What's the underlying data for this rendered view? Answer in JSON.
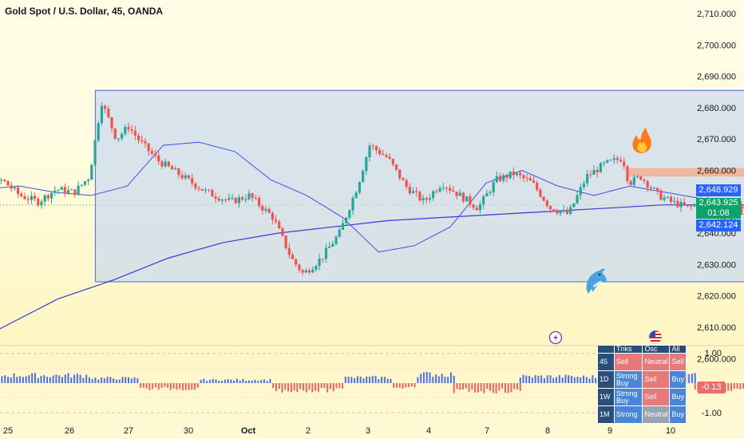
{
  "header": {
    "title": "Gold Spot / U.S. Dollar, 45, OANDA"
  },
  "price_tags": {
    "ma_value": "2,648.929",
    "last_price": "2,643.925",
    "countdown": "01:08",
    "low_value": "2,642.124",
    "osc_value": "-0.13"
  },
  "colors": {
    "up": "#26a69a",
    "down": "#ef5350",
    "ma_fast": "#3f51e0",
    "ma_slow": "#3a3ad6",
    "range_box": "#c9d8ef",
    "range_border": "#5c7fd6",
    "resistance": "#f2b08f",
    "arrow": "#e0245e",
    "osc_up": "#4a6fe0",
    "osc_down": "#e8655f",
    "tag_blue": "#2962ff",
    "tag_green": "#0aa36b"
  },
  "icons": {
    "dolphin": "dolphin-icon",
    "fire": "fire-icon",
    "lightning": "lightning-icon",
    "us_flag": "us-flag-icon"
  },
  "signal_table": {
    "headers": [
      "",
      "Tnks",
      "Osc",
      "All"
    ],
    "rows": [
      {
        "tf": "45",
        "cells": [
          {
            "text": "Sell",
            "kind": "sell"
          },
          {
            "text": "Neutral",
            "kind": "sell"
          },
          {
            "text": "Sell",
            "kind": "sell"
          }
        ]
      },
      {
        "tf": "1D",
        "cells": [
          {
            "text": "Strong Buy",
            "kind": "buy"
          },
          {
            "text": "Sell",
            "kind": "sell"
          },
          {
            "text": "Buy",
            "kind": "buy"
          }
        ]
      },
      {
        "tf": "1W",
        "cells": [
          {
            "text": "Strong Buy",
            "kind": "buy"
          },
          {
            "text": "Sell",
            "kind": "sell"
          },
          {
            "text": "Buy",
            "kind": "buy"
          }
        ]
      },
      {
        "tf": "1M",
        "cells": [
          {
            "text": "Strong",
            "kind": "buy"
          },
          {
            "text": "Neutral",
            "kind": "neutral"
          },
          {
            "text": "Buy",
            "kind": "buy"
          }
        ]
      }
    ]
  },
  "chart_data": {
    "type": "candlestick",
    "symbol": "Gold Spot / U.S. Dollar",
    "interval": "45",
    "source": "OANDA",
    "x_ticks": [
      "25",
      "26",
      "27",
      "30",
      "Oct",
      "2",
      "3",
      "4",
      "7",
      "8",
      "9",
      "10"
    ],
    "y_ticks": [
      "2,710.000",
      "2,700.000",
      "2,690.000",
      "2,680.000",
      "2,670.000",
      "2,660.000",
      "2,650.000",
      "2,640.000",
      "2,630.000",
      "2,620.000",
      "2,610.000",
      "2,600.000"
    ],
    "ylim": [
      2598,
      2714
    ],
    "price_path": [
      {
        "d": 24.0,
        "p": 2655
      },
      {
        "d": 24.3,
        "p": 2658
      },
      {
        "d": 24.6,
        "p": 2652
      },
      {
        "d": 24.9,
        "p": 2657
      },
      {
        "d": 25.2,
        "p": 2652
      },
      {
        "d": 25.5,
        "p": 2650
      },
      {
        "d": 25.8,
        "p": 2654
      },
      {
        "d": 26.1,
        "p": 2653
      },
      {
        "d": 26.35,
        "p": 2658
      },
      {
        "d": 26.55,
        "p": 2682
      },
      {
        "d": 26.8,
        "p": 2670
      },
      {
        "d": 27.0,
        "p": 2674
      },
      {
        "d": 27.2,
        "p": 2669
      },
      {
        "d": 27.5,
        "p": 2663
      },
      {
        "d": 27.9,
        "p": 2658
      },
      {
        "d": 28.3,
        "p": 2653
      },
      {
        "d": 28.7,
        "p": 2650
      },
      {
        "d": 29.0,
        "p": 2652
      },
      {
        "d": 29.4,
        "p": 2645
      },
      {
        "d": 29.7,
        "p": 2632
      },
      {
        "d": 29.9,
        "p": 2627
      },
      {
        "d": 30.2,
        "p": 2632
      },
      {
        "d": 30.5,
        "p": 2640
      },
      {
        "d": 30.8,
        "p": 2655
      },
      {
        "d": 31.0,
        "p": 2668
      },
      {
        "d": 31.3,
        "p": 2664
      },
      {
        "d": 31.6,
        "p": 2655
      },
      {
        "d": 31.9,
        "p": 2650
      },
      {
        "d": 32.2,
        "p": 2656
      },
      {
        "d": 32.5,
        "p": 2652
      },
      {
        "d": 32.8,
        "p": 2648
      },
      {
        "d": 33.1,
        "p": 2657
      },
      {
        "d": 33.4,
        "p": 2659
      },
      {
        "d": 33.7,
        "p": 2656
      },
      {
        "d": 34.0,
        "p": 2648
      },
      {
        "d": 34.3,
        "p": 2646
      },
      {
        "d": 34.6,
        "p": 2658
      },
      {
        "d": 34.9,
        "p": 2662
      },
      {
        "d": 35.2,
        "p": 2664
      },
      {
        "d": 35.3,
        "p": 2656
      },
      {
        "d": 35.5,
        "p": 2658
      },
      {
        "d": 35.8,
        "p": 2652
      },
      {
        "d": 36.0,
        "p": 2650
      },
      {
        "d": 36.3,
        "p": 2648
      },
      {
        "d": 36.6,
        "p": 2651
      },
      {
        "d": 36.9,
        "p": 2643
      },
      {
        "d": 37.1,
        "p": 2648
      },
      {
        "d": 37.3,
        "p": 2645
      },
      {
        "d": 37.5,
        "p": 2646
      },
      {
        "d": 37.7,
        "p": 2642
      }
    ],
    "moving_averages": [
      {
        "name": "fast",
        "values": [
          2651,
          2654,
          2655,
          2653,
          2652,
          2655,
          2668,
          2669,
          2666,
          2657,
          2652,
          2645,
          2634,
          2636,
          2642,
          2656,
          2660,
          2655,
          2652,
          2655,
          2653,
          2651,
          2648,
          2649
        ]
      },
      {
        "name": "slow",
        "values": [
          2601,
          2610,
          2619,
          2625,
          2632,
          2637,
          2640,
          2642,
          2644,
          2645,
          2646,
          2647,
          2648,
          2649,
          2649,
          2648.9
        ]
      }
    ],
    "annotations": {
      "range_box": {
        "from": 26.45,
        "to": 38.95,
        "top": 2685.5,
        "bottom": 2624.5
      },
      "resistance_zone": {
        "from": 35.3,
        "to": 38.95,
        "top": 2660,
        "bottom": 2658.8
      },
      "projection_arrow": [
        {
          "d": 37.85,
          "p": 2646.5
        },
        {
          "d": 38.4,
          "p": 2625
        },
        {
          "d": 39.2,
          "p": 2659.5
        },
        {
          "d": 39.75,
          "p": 2637
        }
      ]
    },
    "oscillator": {
      "ylim": [
        -1.0,
        1.0
      ],
      "y_ticks": [
        "1.00",
        "-1.00"
      ],
      "segments": [
        {
          "from": 24.0,
          "to": 26.4,
          "sign": 1,
          "amp": 0.35
        },
        {
          "from": 26.4,
          "to": 27.2,
          "sign": 1,
          "amp": 0.22
        },
        {
          "from": 27.2,
          "to": 28.2,
          "sign": -1,
          "amp": 0.25
        },
        {
          "from": 28.2,
          "to": 29.4,
          "sign": 1,
          "amp": 0.15
        },
        {
          "from": 29.4,
          "to": 30.6,
          "sign": -1,
          "amp": 0.32
        },
        {
          "from": 30.6,
          "to": 31.4,
          "sign": 1,
          "amp": 0.25
        },
        {
          "from": 31.4,
          "to": 31.8,
          "sign": -1,
          "amp": 0.2
        },
        {
          "from": 31.8,
          "to": 32.4,
          "sign": 1,
          "amp": 0.4
        },
        {
          "from": 32.4,
          "to": 33.5,
          "sign": -1,
          "amp": 0.35
        },
        {
          "from": 33.5,
          "to": 34.3,
          "sign": 1,
          "amp": 0.3
        },
        {
          "from": 34.3,
          "to": 35.3,
          "sign": 1,
          "amp": 0.28
        },
        {
          "from": 35.3,
          "to": 36.1,
          "sign": -1,
          "amp": 0.38
        },
        {
          "from": 36.1,
          "to": 36.4,
          "sign": 1,
          "amp": 0.35
        },
        {
          "from": 36.4,
          "to": 37.8,
          "sign": -1,
          "amp": 0.35
        }
      ]
    }
  }
}
